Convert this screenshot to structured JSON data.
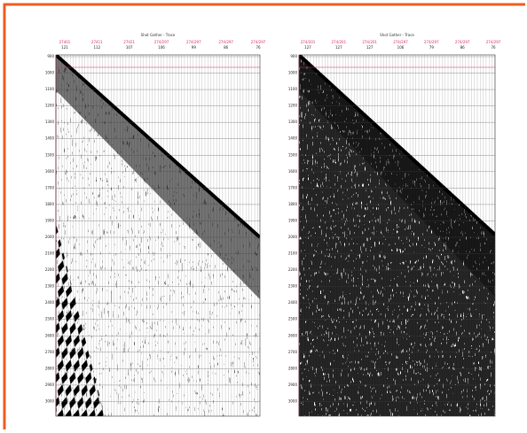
{
  "panels": [
    {
      "title": "Shot Gather - Trace",
      "trace_labels": [
        {
          "top": "27401",
          "bottom": "121"
        },
        {
          "top": "27411",
          "bottom": "112"
        },
        {
          "top": "27421",
          "bottom": "107"
        },
        {
          "top": "274/297",
          "bottom": "106"
        },
        {
          "top": "274/297",
          "bottom": "99"
        },
        {
          "top": "274/297",
          "bottom": "86"
        },
        {
          "top": "274/297",
          "bottom": "76"
        }
      ],
      "depth_labels": [
        "900",
        "1000",
        "1100",
        "1200",
        "1300",
        "1400",
        "1500",
        "1600",
        "1700",
        "1800",
        "1900",
        "2000",
        "2100",
        "2200",
        "2300",
        "2400",
        "2500",
        "2600",
        "2700",
        "2800",
        "2900",
        "3000"
      ]
    },
    {
      "title": "Shot Gather - Trace",
      "trace_labels": [
        {
          "top": "274/201",
          "bottom": "127"
        },
        {
          "top": "274/201",
          "bottom": "127"
        },
        {
          "top": "274/201",
          "bottom": "127"
        },
        {
          "top": "274/297",
          "bottom": "106"
        },
        {
          "top": "274/297",
          "bottom": "79"
        },
        {
          "top": "274/297",
          "bottom": "86"
        },
        {
          "top": "274/297",
          "bottom": "76"
        }
      ],
      "depth_labels": [
        "900",
        "1000",
        "1100",
        "1200",
        "1300",
        "1400",
        "1500",
        "1600",
        "1700",
        "1800",
        "1900",
        "2000",
        "2100",
        "2200",
        "2300",
        "2400",
        "2500",
        "2600",
        "2700",
        "2800",
        "2900",
        "3000"
      ]
    }
  ]
}
